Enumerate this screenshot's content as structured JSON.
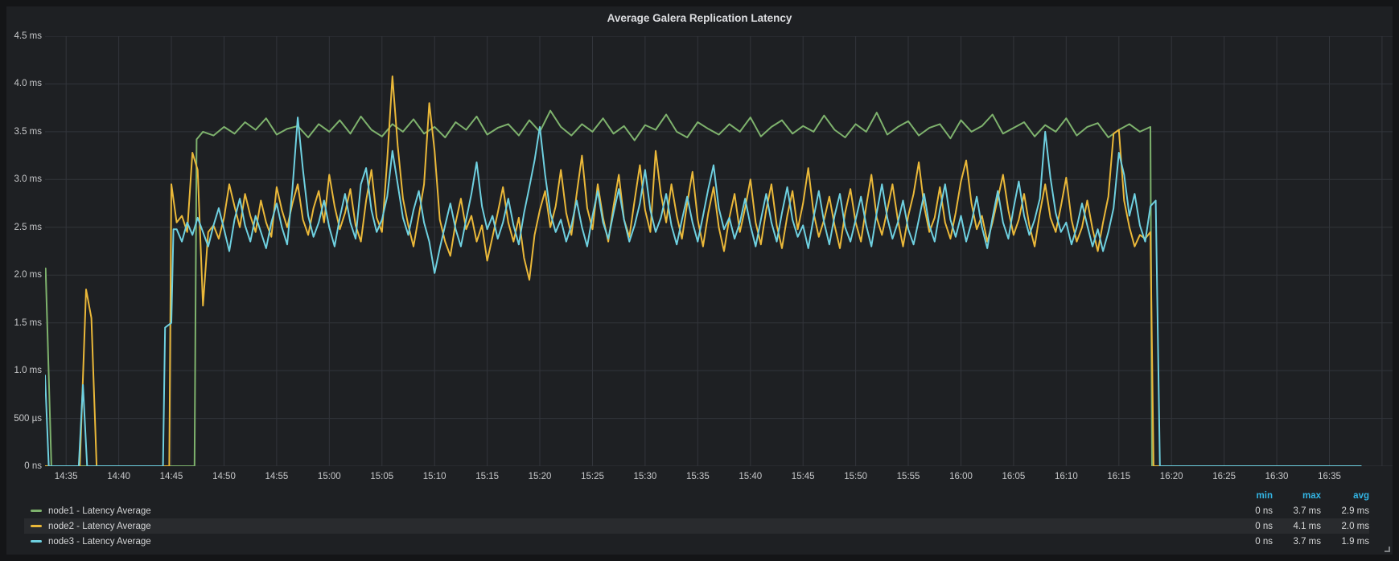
{
  "panel": {
    "title": "Average Galera Replication Latency",
    "background": "#1e2023",
    "page_background": "#141517",
    "grid_color": "#32353b",
    "header_link_color": "#33b5e5"
  },
  "chart_data": {
    "type": "line",
    "title": "Average Galera Replication Latency",
    "grid": true,
    "legend_position": "bottom-left",
    "stats_columns": [
      "min",
      "max",
      "avg"
    ],
    "x_domain_minutes": [
      0,
      128
    ],
    "grid_color": "#32353b",
    "x_axis": {
      "start_minute": 2,
      "step_minute": 5,
      "extra_gridlines": 1,
      "labels": [
        "14:35",
        "14:40",
        "14:45",
        "14:50",
        "14:55",
        "15:00",
        "15:05",
        "15:10",
        "15:15",
        "15:20",
        "15:25",
        "15:30",
        "15:35",
        "15:40",
        "15:45",
        "15:50",
        "15:55",
        "16:00",
        "16:05",
        "16:10",
        "16:15",
        "16:20",
        "16:25",
        "16:30",
        "16:35"
      ]
    },
    "y_axis": {
      "range": [
        0,
        4.5
      ],
      "unit": "ms",
      "ticks": [
        [
          0,
          "0 ns"
        ],
        [
          0.5,
          "500 µs"
        ],
        [
          1.0,
          "1.0 ms"
        ],
        [
          1.5,
          "1.5 ms"
        ],
        [
          2.0,
          "2.0 ms"
        ],
        [
          2.5,
          "2.5 ms"
        ],
        [
          3.0,
          "3.0 ms"
        ],
        [
          3.5,
          "3.5 ms"
        ],
        [
          4.0,
          "4.0 ms"
        ],
        [
          4.5,
          "4.5 ms"
        ]
      ]
    },
    "series": [
      {
        "id": "node1",
        "label": "node1 - Latency Average",
        "color": "#7EB26D",
        "highlighted": false,
        "stats": {
          "min": "0 ns",
          "max": "3.7 ms",
          "avg": "2.9 ms"
        },
        "segments": [
          {
            "points": [
              [
                0.05,
                2.07
              ],
              [
                0.6,
                0
              ],
              [
                14.2,
                0
              ],
              [
                14.4,
                3.42
              ]
            ]
          },
          {
            "t0": 15,
            "step": 1,
            "values": [
              3.5,
              3.46,
              3.55,
              3.48,
              3.6,
              3.52,
              3.64,
              3.47,
              3.53,
              3.56,
              3.44,
              3.58,
              3.5,
              3.62,
              3.48,
              3.66,
              3.52,
              3.45,
              3.58,
              3.5,
              3.63,
              3.48,
              3.55,
              3.44,
              3.6,
              3.52,
              3.66,
              3.47,
              3.54,
              3.58,
              3.46,
              3.62,
              3.5,
              3.72,
              3.55,
              3.46,
              3.58,
              3.5,
              3.64,
              3.48,
              3.56,
              3.41,
              3.57,
              3.52,
              3.68,
              3.5,
              3.44,
              3.6,
              3.53,
              3.47,
              3.58,
              3.5,
              3.65,
              3.45,
              3.55,
              3.62,
              3.48,
              3.56,
              3.5,
              3.67,
              3.52,
              3.44,
              3.58,
              3.5,
              3.7,
              3.47,
              3.55,
              3.61,
              3.46,
              3.54,
              3.58,
              3.43,
              3.62,
              3.5,
              3.56,
              3.68,
              3.48,
              3.54,
              3.6,
              3.45,
              3.57,
              3.5,
              3.64,
              3.46,
              3.55,
              3.59,
              3.44,
              3.52,
              3.58,
              3.5,
              3.55
            ]
          },
          {
            "points": [
              [
                105.15,
                0
              ]
            ]
          }
        ]
      },
      {
        "id": "node2",
        "label": "node2 - Latency Average",
        "color": "#EAB839",
        "highlighted": true,
        "stats": {
          "min": "0 ns",
          "max": "4.1 ms",
          "avg": "2.0 ms"
        },
        "segments": [
          {
            "points": [
              [
                0,
                0
              ],
              [
                3.3,
                0
              ],
              [
                3.9,
                1.85
              ],
              [
                4.4,
                1.55
              ],
              [
                4.9,
                0
              ],
              [
                11.8,
                0
              ]
            ]
          },
          {
            "t0": 12,
            "step": 0.5,
            "values": [
              2.95,
              2.55,
              2.62,
              2.45,
              3.28,
              3.1,
              1.68,
              2.45,
              2.52,
              2.38,
              2.6,
              2.95,
              2.72,
              2.5,
              2.85,
              2.62,
              2.45,
              2.78,
              2.55,
              2.4,
              2.92,
              2.68,
              2.5,
              2.75,
              2.95,
              2.58,
              2.42,
              2.7,
              2.88,
              2.55,
              3.05,
              2.72,
              2.48,
              2.65,
              2.9,
              2.52,
              2.35,
              2.78,
              3.1,
              2.6,
              2.45,
              3.2,
              4.08,
              3.35,
              2.8,
              2.52,
              2.3,
              2.62,
              2.95,
              3.8,
              3.3,
              2.58,
              2.35,
              2.2,
              2.55,
              2.8,
              2.48,
              2.62,
              2.35,
              2.52,
              2.15,
              2.4,
              2.65,
              2.92,
              2.55,
              2.35,
              2.6,
              2.18,
              1.95,
              2.42,
              2.68,
              2.88,
              2.5,
              2.72,
              3.1,
              2.65,
              2.42,
              2.85,
              3.25,
              2.7,
              2.48,
              2.95,
              2.6,
              2.35,
              2.72,
              3.05,
              2.58,
              2.4,
              2.78,
              3.15,
              2.68,
              2.45,
              3.3,
              2.85,
              2.55,
              2.95,
              2.62,
              2.38,
              2.75,
              3.08,
              2.58,
              2.3,
              2.65,
              2.92,
              2.5,
              2.25,
              2.6,
              2.85,
              2.45,
              2.7,
              3.0,
              2.55,
              2.32,
              2.68,
              2.95,
              2.52,
              2.28,
              2.62,
              2.88,
              2.48,
              2.75,
              3.12,
              2.65,
              2.4,
              2.58,
              2.82,
              2.52,
              2.28,
              2.65,
              2.9,
              2.55,
              2.35,
              2.72,
              3.05,
              2.6,
              2.42,
              2.68,
              2.95,
              2.58,
              2.3,
              2.62,
              2.85,
              3.18,
              2.72,
              2.45,
              2.6,
              2.92,
              2.55,
              2.38,
              2.65,
              2.98,
              3.2,
              2.75,
              2.48,
              2.62,
              2.35,
              2.55,
              2.8,
              3.05,
              2.68,
              2.42,
              2.58,
              2.85,
              2.52,
              2.3,
              2.65,
              2.95,
              2.6,
              2.45,
              2.72,
              3.02,
              2.58,
              2.35,
              2.5,
              2.78,
              2.48,
              2.25,
              2.55,
              2.82,
              3.48,
              3.52,
              2.78,
              2.5,
              2.3,
              2.42,
              2.38,
              2.45
            ]
          },
          {
            "points": [
              [
                105.3,
                0
              ],
              [
                106.2,
                0
              ]
            ]
          }
        ]
      },
      {
        "id": "node3",
        "label": "node3 - Latency Average",
        "color": "#6ED0E0",
        "highlighted": false,
        "stats": {
          "min": "0 ns",
          "max": "3.7 ms",
          "avg": "1.9 ms"
        },
        "segments": [
          {
            "points": [
              [
                0,
                0.95
              ],
              [
                0.35,
                0
              ],
              [
                3.2,
                0
              ],
              [
                3.6,
                0.85
              ],
              [
                4.0,
                0
              ],
              [
                11.2,
                0
              ],
              [
                11.4,
                1.45
              ],
              [
                12.0,
                1.5
              ],
              [
                12.2,
                2.48
              ]
            ]
          },
          {
            "t0": 12.5,
            "step": 0.5,
            "values": [
              2.48,
              2.35,
              2.55,
              2.42,
              2.6,
              2.45,
              2.3,
              2.52,
              2.7,
              2.48,
              2.25,
              2.58,
              2.8,
              2.52,
              2.35,
              2.62,
              2.45,
              2.28,
              2.55,
              2.75,
              2.5,
              2.32,
              2.9,
              3.65,
              3.1,
              2.62,
              2.4,
              2.55,
              2.78,
              2.5,
              2.3,
              2.6,
              2.85,
              2.55,
              2.38,
              2.95,
              3.12,
              2.68,
              2.45,
              2.58,
              2.82,
              3.3,
              2.95,
              2.6,
              2.42,
              2.68,
              2.88,
              2.55,
              2.35,
              2.02,
              2.28,
              2.52,
              2.75,
              2.48,
              2.3,
              2.58,
              2.85,
              3.18,
              2.72,
              2.48,
              2.62,
              2.38,
              2.55,
              2.8,
              2.52,
              2.32,
              2.65,
              2.92,
              3.2,
              3.55,
              3.05,
              2.65,
              2.45,
              2.58,
              2.35,
              2.52,
              2.78,
              2.5,
              2.3,
              2.62,
              2.88,
              2.55,
              2.38,
              2.65,
              2.9,
              2.58,
              2.35,
              2.52,
              2.75,
              3.1,
              2.68,
              2.45,
              2.6,
              2.85,
              2.52,
              2.32,
              2.58,
              2.82,
              2.55,
              2.35,
              2.62,
              2.9,
              3.15,
              2.7,
              2.48,
              2.6,
              2.38,
              2.55,
              2.8,
              2.52,
              2.3,
              2.58,
              2.85,
              2.55,
              2.35,
              2.65,
              2.92,
              2.58,
              2.4,
              2.52,
              2.28,
              2.6,
              2.88,
              2.55,
              2.32,
              2.62,
              2.85,
              2.5,
              2.35,
              2.58,
              2.82,
              2.52,
              2.3,
              2.65,
              2.95,
              2.6,
              2.38,
              2.55,
              2.78,
              2.48,
              2.32,
              2.58,
              2.85,
              2.52,
              2.35,
              2.68,
              2.95,
              2.58,
              2.4,
              2.62,
              2.35,
              2.55,
              2.82,
              2.5,
              2.28,
              2.6,
              2.88,
              2.55,
              2.38,
              2.7,
              2.98,
              2.62,
              2.42,
              2.58,
              2.8,
              3.5,
              3.02,
              2.65,
              2.45,
              2.55,
              2.32,
              2.5,
              2.75,
              2.52,
              2.3,
              2.48,
              2.25,
              2.45,
              2.7,
              3.28,
              3.05,
              2.62,
              2.85,
              2.52,
              2.35,
              2.72,
              2.78
            ]
          },
          {
            "points": [
              [
                105.9,
                0
              ],
              [
                125,
                0
              ]
            ]
          }
        ]
      }
    ]
  }
}
